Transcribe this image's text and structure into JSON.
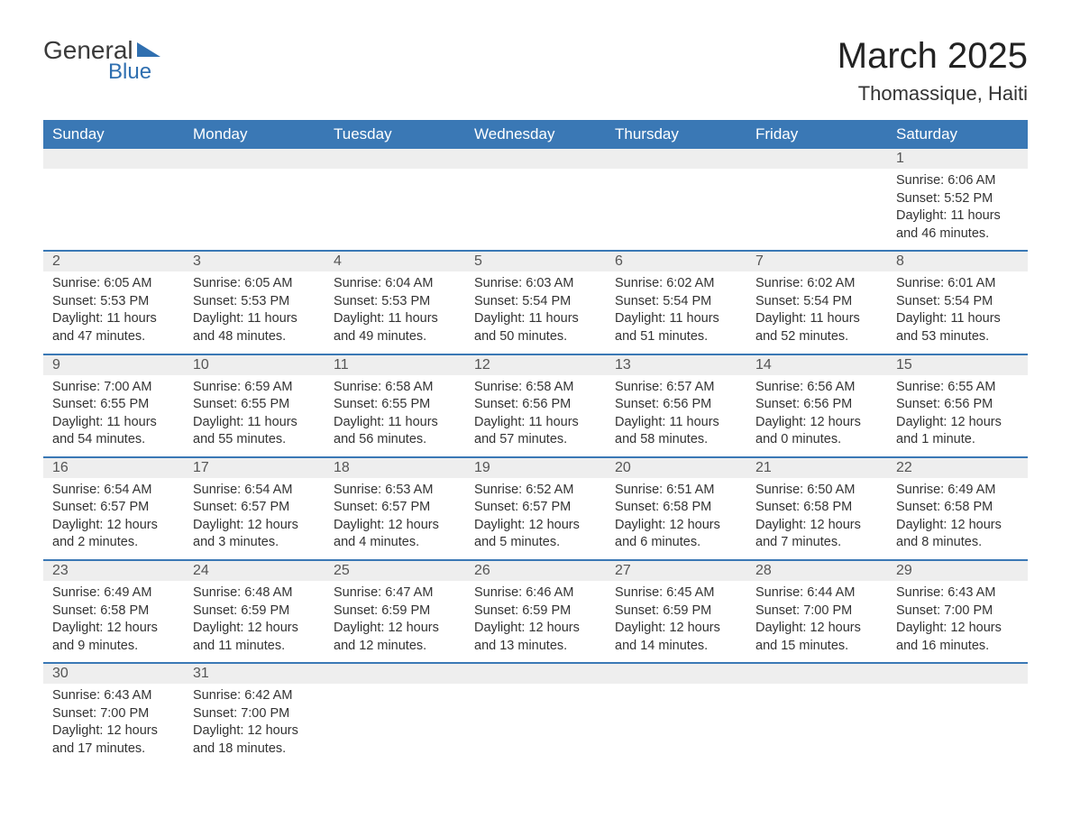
{
  "logo": {
    "line1": "General",
    "line2": "Blue"
  },
  "title": {
    "month": "March 2025",
    "location": "Thomassique, Haiti"
  },
  "colors": {
    "header_bg": "#3a78b5",
    "header_text": "#ffffff",
    "daynum_bg": "#eeeeee",
    "row_border": "#3a78b5",
    "body_text": "#333333",
    "title_text": "#222222",
    "logo_blue": "#2f6fb0",
    "background": "#ffffff"
  },
  "weekdays": [
    "Sunday",
    "Monday",
    "Tuesday",
    "Wednesday",
    "Thursday",
    "Friday",
    "Saturday"
  ],
  "weeks": [
    [
      null,
      null,
      null,
      null,
      null,
      null,
      {
        "n": "1",
        "sr": "6:06 AM",
        "ss": "5:52 PM",
        "dl": "11 hours and 46 minutes."
      }
    ],
    [
      {
        "n": "2",
        "sr": "6:05 AM",
        "ss": "5:53 PM",
        "dl": "11 hours and 47 minutes."
      },
      {
        "n": "3",
        "sr": "6:05 AM",
        "ss": "5:53 PM",
        "dl": "11 hours and 48 minutes."
      },
      {
        "n": "4",
        "sr": "6:04 AM",
        "ss": "5:53 PM",
        "dl": "11 hours and 49 minutes."
      },
      {
        "n": "5",
        "sr": "6:03 AM",
        "ss": "5:54 PM",
        "dl": "11 hours and 50 minutes."
      },
      {
        "n": "6",
        "sr": "6:02 AM",
        "ss": "5:54 PM",
        "dl": "11 hours and 51 minutes."
      },
      {
        "n": "7",
        "sr": "6:02 AM",
        "ss": "5:54 PM",
        "dl": "11 hours and 52 minutes."
      },
      {
        "n": "8",
        "sr": "6:01 AM",
        "ss": "5:54 PM",
        "dl": "11 hours and 53 minutes."
      }
    ],
    [
      {
        "n": "9",
        "sr": "7:00 AM",
        "ss": "6:55 PM",
        "dl": "11 hours and 54 minutes."
      },
      {
        "n": "10",
        "sr": "6:59 AM",
        "ss": "6:55 PM",
        "dl": "11 hours and 55 minutes."
      },
      {
        "n": "11",
        "sr": "6:58 AM",
        "ss": "6:55 PM",
        "dl": "11 hours and 56 minutes."
      },
      {
        "n": "12",
        "sr": "6:58 AM",
        "ss": "6:56 PM",
        "dl": "11 hours and 57 minutes."
      },
      {
        "n": "13",
        "sr": "6:57 AM",
        "ss": "6:56 PM",
        "dl": "11 hours and 58 minutes."
      },
      {
        "n": "14",
        "sr": "6:56 AM",
        "ss": "6:56 PM",
        "dl": "12 hours and 0 minutes."
      },
      {
        "n": "15",
        "sr": "6:55 AM",
        "ss": "6:56 PM",
        "dl": "12 hours and 1 minute."
      }
    ],
    [
      {
        "n": "16",
        "sr": "6:54 AM",
        "ss": "6:57 PM",
        "dl": "12 hours and 2 minutes."
      },
      {
        "n": "17",
        "sr": "6:54 AM",
        "ss": "6:57 PM",
        "dl": "12 hours and 3 minutes."
      },
      {
        "n": "18",
        "sr": "6:53 AM",
        "ss": "6:57 PM",
        "dl": "12 hours and 4 minutes."
      },
      {
        "n": "19",
        "sr": "6:52 AM",
        "ss": "6:57 PM",
        "dl": "12 hours and 5 minutes."
      },
      {
        "n": "20",
        "sr": "6:51 AM",
        "ss": "6:58 PM",
        "dl": "12 hours and 6 minutes."
      },
      {
        "n": "21",
        "sr": "6:50 AM",
        "ss": "6:58 PM",
        "dl": "12 hours and 7 minutes."
      },
      {
        "n": "22",
        "sr": "6:49 AM",
        "ss": "6:58 PM",
        "dl": "12 hours and 8 minutes."
      }
    ],
    [
      {
        "n": "23",
        "sr": "6:49 AM",
        "ss": "6:58 PM",
        "dl": "12 hours and 9 minutes."
      },
      {
        "n": "24",
        "sr": "6:48 AM",
        "ss": "6:59 PM",
        "dl": "12 hours and 11 minutes."
      },
      {
        "n": "25",
        "sr": "6:47 AM",
        "ss": "6:59 PM",
        "dl": "12 hours and 12 minutes."
      },
      {
        "n": "26",
        "sr": "6:46 AM",
        "ss": "6:59 PM",
        "dl": "12 hours and 13 minutes."
      },
      {
        "n": "27",
        "sr": "6:45 AM",
        "ss": "6:59 PM",
        "dl": "12 hours and 14 minutes."
      },
      {
        "n": "28",
        "sr": "6:44 AM",
        "ss": "7:00 PM",
        "dl": "12 hours and 15 minutes."
      },
      {
        "n": "29",
        "sr": "6:43 AM",
        "ss": "7:00 PM",
        "dl": "12 hours and 16 minutes."
      }
    ],
    [
      {
        "n": "30",
        "sr": "6:43 AM",
        "ss": "7:00 PM",
        "dl": "12 hours and 17 minutes."
      },
      {
        "n": "31",
        "sr": "6:42 AM",
        "ss": "7:00 PM",
        "dl": "12 hours and 18 minutes."
      },
      null,
      null,
      null,
      null,
      null
    ]
  ],
  "labels": {
    "sunrise": "Sunrise: ",
    "sunset": "Sunset: ",
    "daylight": "Daylight: "
  }
}
